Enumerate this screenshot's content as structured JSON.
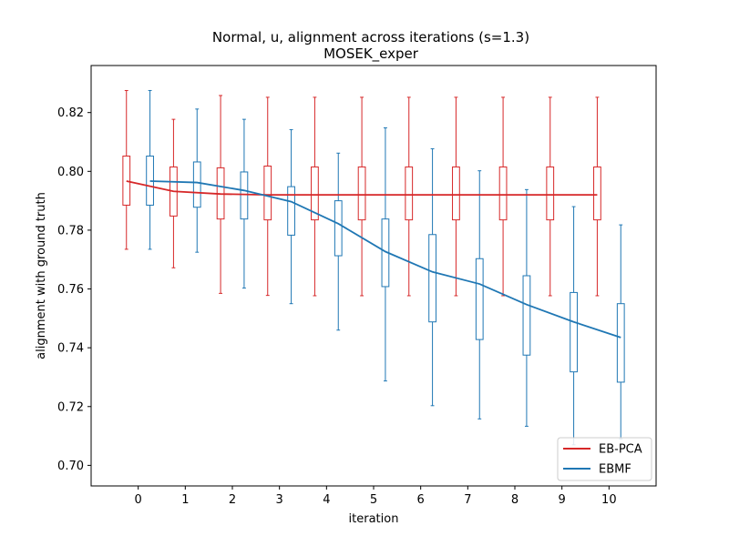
{
  "chart_data": {
    "type": "box",
    "title": "Normal, u, alignment across iterations (s=1.3)",
    "subtitle": "MOSEK_exper",
    "xlabel": "iteration",
    "ylabel": "alignment with ground truth",
    "categories": [
      "0",
      "1",
      "2",
      "3",
      "4",
      "5",
      "6",
      "7",
      "8",
      "9",
      "10"
    ],
    "xlim": [
      -1,
      11
    ],
    "ylim": [
      0.693,
      0.836
    ],
    "yticks": [
      0.7,
      0.72,
      0.74,
      0.76,
      0.78,
      0.8,
      0.82
    ],
    "ytick_labels": [
      "0.70",
      "0.72",
      "0.74",
      "0.76",
      "0.78",
      "0.80",
      "0.82"
    ],
    "legend_position": "lower-right",
    "series": [
      {
        "name": "EB-PCA",
        "color": "#d62728",
        "offset": -0.25,
        "mean": [
          0.7967,
          0.7932,
          0.7923,
          0.792,
          0.792,
          0.792,
          0.792,
          0.792,
          0.792,
          0.792,
          0.792
        ],
        "boxes": [
          {
            "whislo": 0.7735,
            "q1": 0.7885,
            "q3": 0.8052,
            "whishi": 0.8275
          },
          {
            "whislo": 0.7672,
            "q1": 0.7848,
            "q3": 0.8015,
            "whishi": 0.8177
          },
          {
            "whislo": 0.7585,
            "q1": 0.7838,
            "q3": 0.8012,
            "whishi": 0.8258
          },
          {
            "whislo": 0.7578,
            "q1": 0.7835,
            "q3": 0.8018,
            "whishi": 0.8252
          },
          {
            "whislo": 0.7577,
            "q1": 0.7835,
            "q3": 0.8015,
            "whishi": 0.8252
          },
          {
            "whislo": 0.7577,
            "q1": 0.7835,
            "q3": 0.8015,
            "whishi": 0.8252
          },
          {
            "whislo": 0.7577,
            "q1": 0.7835,
            "q3": 0.8015,
            "whishi": 0.8252
          },
          {
            "whislo": 0.7577,
            "q1": 0.7835,
            "q3": 0.8015,
            "whishi": 0.8252
          },
          {
            "whislo": 0.7577,
            "q1": 0.7835,
            "q3": 0.8015,
            "whishi": 0.8252
          },
          {
            "whislo": 0.7577,
            "q1": 0.7835,
            "q3": 0.8015,
            "whishi": 0.8252
          },
          {
            "whislo": 0.7577,
            "q1": 0.7835,
            "q3": 0.8015,
            "whishi": 0.8252
          }
        ]
      },
      {
        "name": "EBMF",
        "color": "#1f77b4",
        "offset": 0.25,
        "mean": [
          0.7967,
          0.7962,
          0.7935,
          0.7897,
          0.7822,
          0.7727,
          0.7658,
          0.7617,
          0.7547,
          0.7488,
          0.7435
        ],
        "boxes": [
          {
            "whislo": 0.7735,
            "q1": 0.7885,
            "q3": 0.8052,
            "whishi": 0.8275
          },
          {
            "whislo": 0.7725,
            "q1": 0.7878,
            "q3": 0.8032,
            "whishi": 0.8212
          },
          {
            "whislo": 0.7603,
            "q1": 0.7838,
            "q3": 0.7998,
            "whishi": 0.8177
          },
          {
            "whislo": 0.755,
            "q1": 0.7783,
            "q3": 0.7948,
            "whishi": 0.8142
          },
          {
            "whislo": 0.746,
            "q1": 0.7713,
            "q3": 0.79,
            "whishi": 0.8062
          },
          {
            "whislo": 0.7287,
            "q1": 0.7608,
            "q3": 0.7838,
            "whishi": 0.8148
          },
          {
            "whislo": 0.7203,
            "q1": 0.7488,
            "q3": 0.7785,
            "whishi": 0.8077
          },
          {
            "whislo": 0.7158,
            "q1": 0.7428,
            "q3": 0.7703,
            "whishi": 0.8002
          },
          {
            "whislo": 0.7133,
            "q1": 0.7375,
            "q3": 0.7645,
            "whishi": 0.7938
          },
          {
            "whislo": 0.707,
            "q1": 0.7318,
            "q3": 0.7588,
            "whishi": 0.788
          },
          {
            "whislo": 0.709,
            "q1": 0.7283,
            "q3": 0.755,
            "whishi": 0.7818
          }
        ]
      }
    ]
  }
}
